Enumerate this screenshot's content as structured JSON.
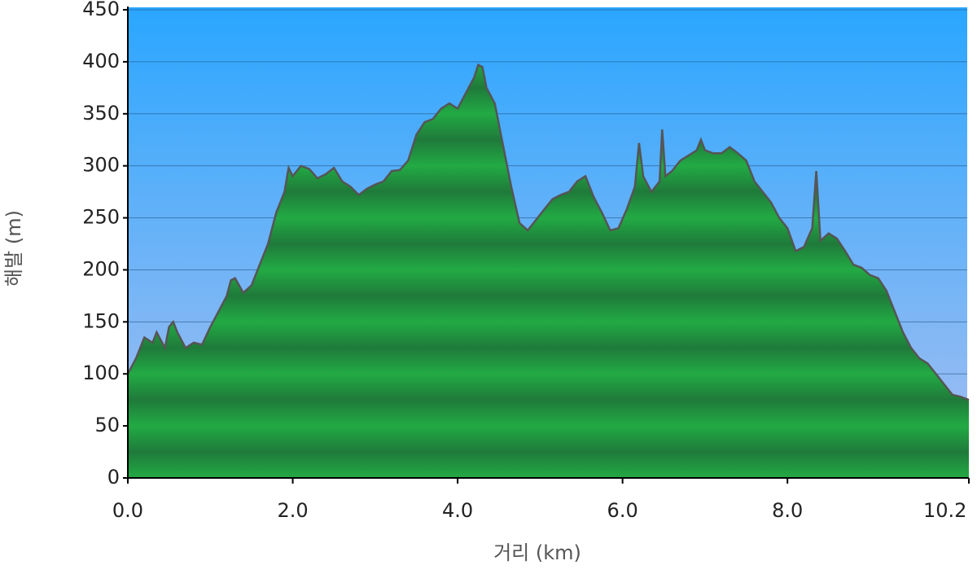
{
  "chart_data": {
    "type": "area",
    "xlabel": "거리   (km)",
    "ylabel": "해발 (m)",
    "color": "#22aa44",
    "xlim": [
      0,
      10.2
    ],
    "ylim": [
      0,
      450
    ],
    "xticks": [
      {
        "value": 0,
        "label": "0.0"
      },
      {
        "value": 2,
        "label": "2.0"
      },
      {
        "value": 4,
        "label": "4.0"
      },
      {
        "value": 6,
        "label": "6.0"
      },
      {
        "value": 8,
        "label": "8.0"
      },
      {
        "value": 10.2,
        "label": "10.2"
      }
    ],
    "yticks": [
      0,
      50,
      100,
      150,
      200,
      250,
      300,
      350,
      400,
      450
    ],
    "grid": true,
    "x": [
      0,
      0.1,
      0.2,
      0.3,
      0.35,
      0.45,
      0.5,
      0.55,
      0.6,
      0.7,
      0.8,
      0.9,
      1.0,
      1.1,
      1.2,
      1.25,
      1.3,
      1.4,
      1.5,
      1.6,
      1.7,
      1.8,
      1.9,
      1.95,
      2.0,
      2.1,
      2.2,
      2.3,
      2.4,
      2.5,
      2.6,
      2.7,
      2.8,
      2.9,
      3.0,
      3.1,
      3.2,
      3.3,
      3.4,
      3.5,
      3.6,
      3.7,
      3.8,
      3.9,
      4.0,
      4.1,
      4.2,
      4.25,
      4.3,
      4.35,
      4.45,
      4.55,
      4.65,
      4.75,
      4.85,
      4.95,
      5.05,
      5.15,
      5.25,
      5.35,
      5.45,
      5.55,
      5.65,
      5.75,
      5.85,
      5.95,
      6.05,
      6.15,
      6.2,
      6.25,
      6.35,
      6.45,
      6.48,
      6.52,
      6.6,
      6.7,
      6.8,
      6.9,
      6.95,
      7.0,
      7.1,
      7.2,
      7.3,
      7.4,
      7.5,
      7.6,
      7.7,
      7.8,
      7.9,
      8.0,
      8.1,
      8.2,
      8.3,
      8.35,
      8.4,
      8.5,
      8.6,
      8.7,
      8.8,
      8.9,
      9.0,
      9.1,
      9.2,
      9.3,
      9.4,
      9.5,
      9.6,
      9.7,
      9.8,
      9.9,
      10.0,
      10.1,
      10.2
    ],
    "values": [
      100,
      115,
      135,
      130,
      140,
      125,
      145,
      150,
      140,
      125,
      130,
      128,
      145,
      160,
      175,
      190,
      192,
      178,
      185,
      205,
      225,
      255,
      275,
      298,
      290,
      300,
      297,
      288,
      292,
      298,
      285,
      280,
      272,
      278,
      282,
      285,
      295,
      296,
      305,
      330,
      342,
      345,
      355,
      360,
      355,
      370,
      385,
      397,
      395,
      375,
      360,
      320,
      280,
      245,
      238,
      248,
      258,
      268,
      272,
      275,
      285,
      290,
      270,
      255,
      238,
      240,
      258,
      280,
      322,
      290,
      275,
      285,
      335,
      290,
      295,
      305,
      310,
      315,
      325,
      315,
      312,
      312,
      318,
      312,
      305,
      285,
      275,
      265,
      250,
      240,
      218,
      222,
      240,
      295,
      228,
      235,
      230,
      218,
      205,
      202,
      195,
      192,
      180,
      160,
      140,
      125,
      115,
      110,
      100,
      90,
      80,
      78,
      75
    ]
  }
}
